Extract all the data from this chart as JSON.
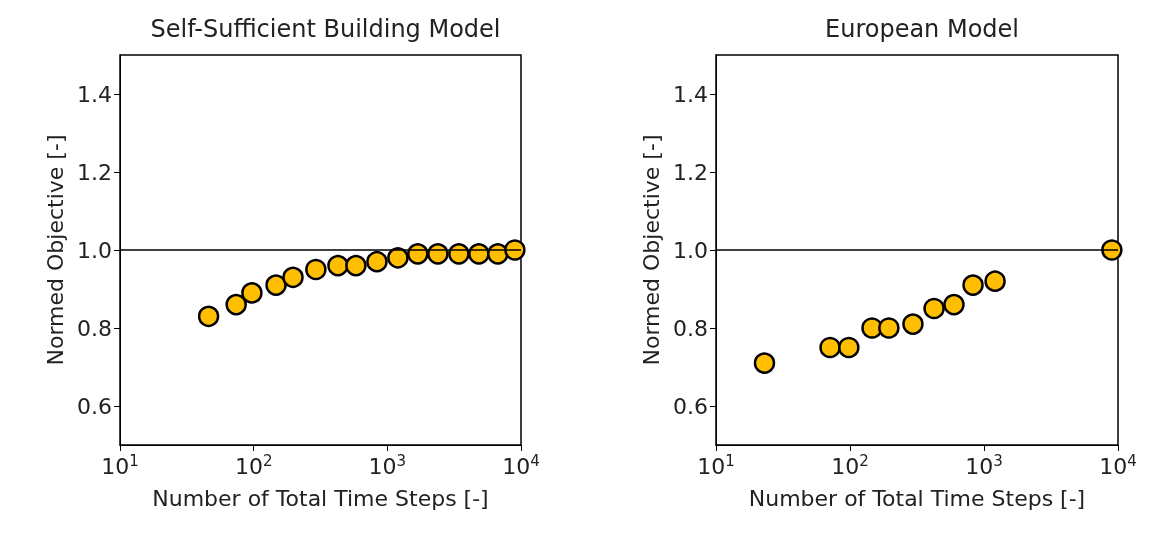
{
  "chart_data": [
    {
      "type": "scatter",
      "title": "Self-Sufficient Building Model",
      "xlabel": "Number of Total Time Steps [-]",
      "ylabel": "Normed Objective [-]",
      "log": "x",
      "marker": "circle",
      "grid": false,
      "xlim": [
        10,
        10000
      ],
      "xticks": [
        {
          "value": 10,
          "label": "10$^{1}$"
        },
        {
          "value": 100,
          "label": "10$^{2}$"
        },
        {
          "value": 1000,
          "label": "10$^{3}$"
        },
        {
          "value": 10000,
          "label": "10$^{4}$"
        }
      ],
      "ylim": [
        0.5,
        1.5
      ],
      "yticks": [
        0.6,
        0.8,
        {
          "value": 1.0,
          "label": "1.0"
        },
        1.2,
        1.4
      ],
      "ref_lines": [
        {
          "axis": "y",
          "value": 1.0,
          "color": "#000000"
        }
      ],
      "series": [
        {
          "color": "#ffbf00",
          "x": [
            46,
            74,
            97,
            147,
            197,
            292,
            427,
            582,
            836,
            1200,
            1690,
            2390,
            3430,
            4840,
            6710,
            9000
          ],
          "values": [
            0.83,
            0.86,
            0.89,
            0.91,
            0.93,
            0.95,
            0.96,
            0.96,
            0.97,
            0.98,
            0.99,
            0.99,
            0.99,
            0.99,
            0.99,
            1.0
          ]
        }
      ]
    },
    {
      "type": "scatter",
      "title": "European Model",
      "xlabel": "Number of Total Time Steps [-]",
      "ylabel": "Normed Objective [-]",
      "log": "x",
      "marker": "circle",
      "grid": false,
      "xlim": [
        10,
        10000
      ],
      "xticks": [
        {
          "value": 10,
          "label": "10$^{1}$"
        },
        {
          "value": 100,
          "label": "10$^{2}$"
        },
        {
          "value": 1000,
          "label": "10$^{3}$"
        },
        {
          "value": 10000,
          "label": "10$^{4}$"
        }
      ],
      "ylim": [
        0.5,
        1.5
      ],
      "yticks": [
        0.6,
        0.8,
        {
          "value": 1.0,
          "label": "1.0"
        },
        1.2,
        1.4
      ],
      "ref_lines": [
        {
          "axis": "y",
          "value": 1.0,
          "color": "#000000"
        }
      ],
      "series": [
        {
          "color": "#ffbf00",
          "x": [
            23,
            71,
            98,
            146,
            195,
            295,
            424,
            597,
            828,
            1210,
            9000
          ],
          "values": [
            0.71,
            0.75,
            0.75,
            0.8,
            0.8,
            0.81,
            0.85,
            0.86,
            0.91,
            0.92,
            1.0
          ]
        }
      ]
    }
  ]
}
